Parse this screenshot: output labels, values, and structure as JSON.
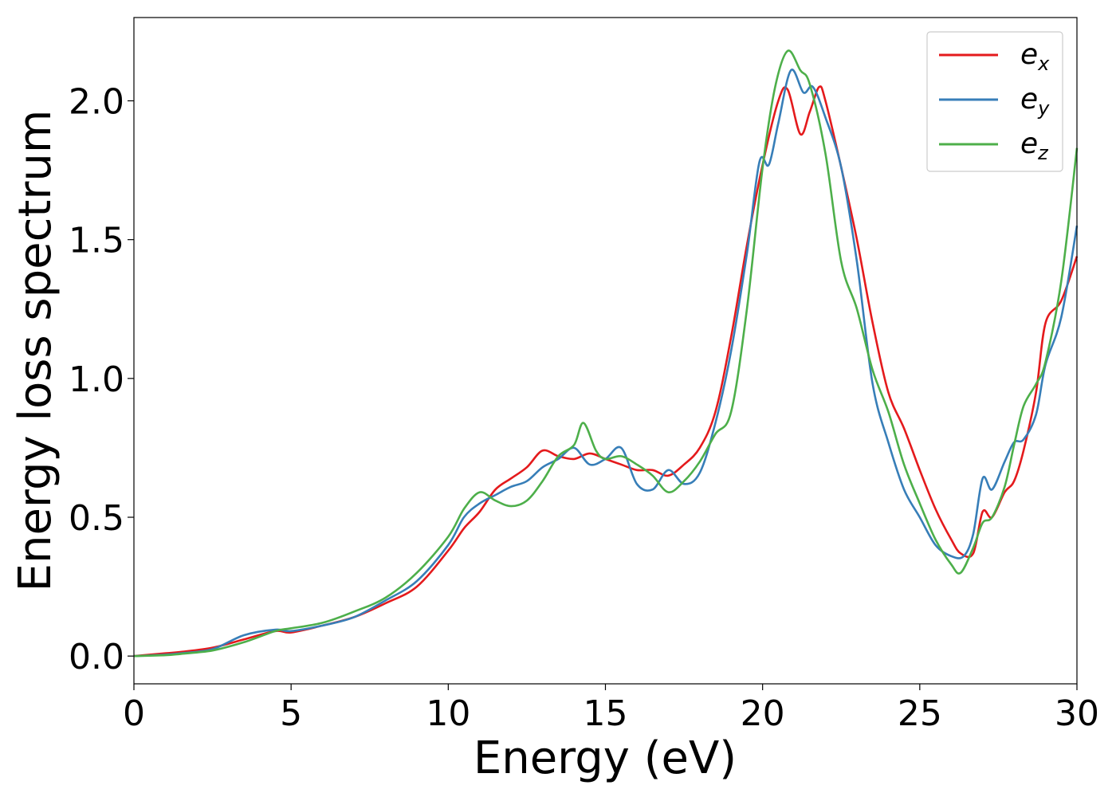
{
  "chart_data": {
    "type": "line",
    "xlabel": "Energy (eV)",
    "ylabel": "Energy loss spectrum",
    "xlim": [
      0,
      30
    ],
    "ylim": [
      -0.1,
      2.3
    ],
    "xticks": [
      0,
      5,
      10,
      15,
      20,
      25,
      30
    ],
    "xtick_labels": [
      "0",
      "5",
      "10",
      "15",
      "20",
      "25",
      "30"
    ],
    "yticks": [
      0.0,
      0.5,
      1.0,
      1.5,
      2.0
    ],
    "ytick_labels": [
      "0.0",
      "0.5",
      "1.0",
      "1.5",
      "2.0"
    ],
    "grid": false,
    "legend_position": "top-right",
    "series": [
      {
        "name": "e",
        "subscript": "x",
        "color": "#e41a1c",
        "x": [
          0,
          1,
          1.5,
          2.5,
          3.5,
          4.5,
          5,
          6,
          7,
          8,
          9,
          10,
          10.5,
          11,
          11.5,
          12,
          12.5,
          13,
          13.5,
          14,
          14.5,
          15,
          15.5,
          16,
          16.5,
          17,
          17.5,
          18,
          18.5,
          19,
          19.5,
          20,
          20.5,
          20.8,
          21.2,
          21.5,
          21.8,
          22,
          22.5,
          23,
          23.5,
          24,
          24.5,
          25,
          25.5,
          26,
          26.3,
          26.7,
          27,
          27.3,
          27.7,
          28,
          28.3,
          28.7,
          29,
          29.5,
          30
        ],
        "y": [
          0,
          0.01,
          0.015,
          0.03,
          0.06,
          0.09,
          0.085,
          0.11,
          0.14,
          0.19,
          0.25,
          0.38,
          0.46,
          0.52,
          0.6,
          0.64,
          0.68,
          0.74,
          0.72,
          0.71,
          0.73,
          0.71,
          0.69,
          0.67,
          0.67,
          0.65,
          0.69,
          0.75,
          0.88,
          1.15,
          1.48,
          1.77,
          2.0,
          2.04,
          1.88,
          1.96,
          2.05,
          2.0,
          1.76,
          1.5,
          1.2,
          0.95,
          0.82,
          0.67,
          0.53,
          0.42,
          0.37,
          0.37,
          0.52,
          0.5,
          0.59,
          0.63,
          0.74,
          0.95,
          1.2,
          1.28,
          1.44
        ]
      },
      {
        "name": "e",
        "subscript": "y",
        "color": "#377eb8",
        "x": [
          0,
          1,
          1.5,
          2.5,
          3.5,
          4.5,
          5,
          6,
          7,
          8,
          9,
          10,
          10.5,
          11,
          11.5,
          12,
          12.5,
          13,
          13.5,
          14,
          14.5,
          15,
          15.5,
          16,
          16.5,
          17,
          17.5,
          18,
          18.5,
          19,
          19.5,
          19.9,
          20.2,
          20.5,
          20.9,
          21.3,
          21.6,
          22,
          22.5,
          23,
          23.5,
          24,
          24.5,
          25,
          25.5,
          26,
          26.4,
          26.7,
          27,
          27.3,
          27.7,
          28,
          28.3,
          28.7,
          29,
          29.5,
          30
        ],
        "y": [
          0,
          0.005,
          0.01,
          0.025,
          0.075,
          0.095,
          0.09,
          0.11,
          0.14,
          0.2,
          0.27,
          0.4,
          0.5,
          0.55,
          0.58,
          0.61,
          0.63,
          0.68,
          0.71,
          0.75,
          0.69,
          0.71,
          0.75,
          0.62,
          0.6,
          0.67,
          0.62,
          0.66,
          0.84,
          1.1,
          1.45,
          1.78,
          1.77,
          1.92,
          2.11,
          2.03,
          2.05,
          1.94,
          1.76,
          1.42,
          0.98,
          0.77,
          0.6,
          0.5,
          0.4,
          0.36,
          0.36,
          0.44,
          0.64,
          0.6,
          0.7,
          0.77,
          0.78,
          0.87,
          1.05,
          1.22,
          1.55
        ]
      },
      {
        "name": "e",
        "subscript": "z",
        "color": "#4daf4a",
        "x": [
          0,
          1,
          1.5,
          2.5,
          3.5,
          4.5,
          5,
          6,
          7,
          8,
          9,
          10,
          10.5,
          11,
          11.5,
          12,
          12.5,
          13,
          13.5,
          14,
          14.3,
          14.7,
          15,
          15.5,
          16,
          16.5,
          17,
          17.5,
          18,
          18.5,
          19,
          19.5,
          20,
          20.4,
          20.8,
          21.2,
          21.5,
          22,
          22.5,
          23,
          23.5,
          24,
          24.5,
          25,
          25.5,
          26,
          26.3,
          26.7,
          27,
          27.3,
          27.7,
          28,
          28.3,
          28.7,
          29,
          29.5,
          30
        ],
        "y": [
          0,
          0.003,
          0.008,
          0.02,
          0.05,
          0.09,
          0.1,
          0.12,
          0.16,
          0.21,
          0.3,
          0.43,
          0.53,
          0.59,
          0.56,
          0.54,
          0.56,
          0.63,
          0.72,
          0.76,
          0.84,
          0.74,
          0.71,
          0.72,
          0.69,
          0.65,
          0.59,
          0.63,
          0.7,
          0.8,
          0.88,
          1.25,
          1.76,
          2.05,
          2.18,
          2.11,
          2.06,
          1.81,
          1.42,
          1.25,
          1.03,
          0.88,
          0.69,
          0.55,
          0.42,
          0.33,
          0.3,
          0.39,
          0.48,
          0.5,
          0.61,
          0.76,
          0.9,
          0.98,
          1.06,
          1.35,
          1.83
        ]
      }
    ]
  }
}
